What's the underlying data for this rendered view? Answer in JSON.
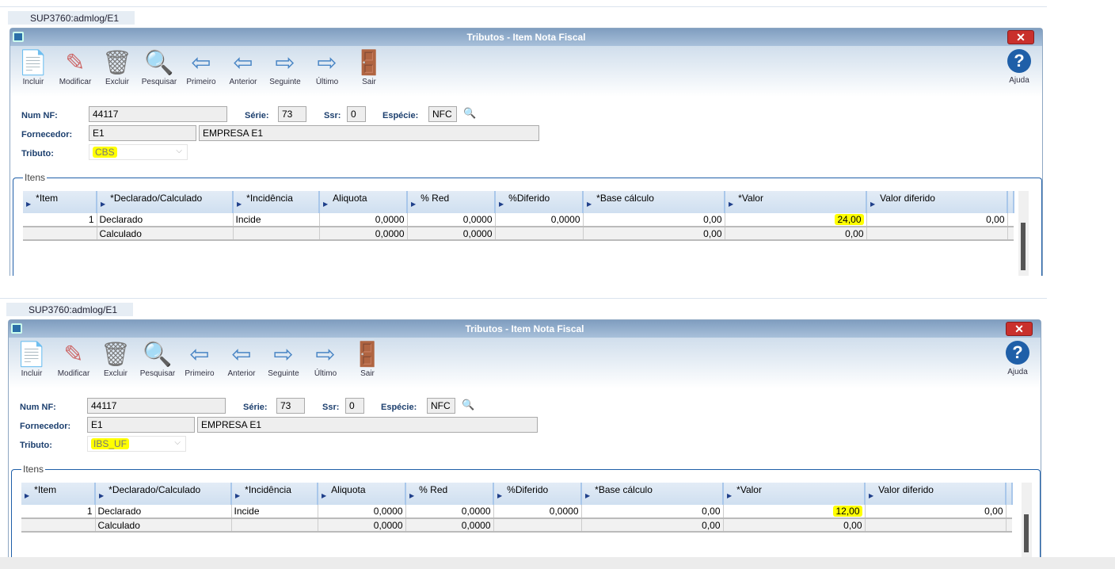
{
  "toolbar": [
    {
      "label": "Incluir",
      "icon": "add-document-icon"
    },
    {
      "label": "Modificar",
      "icon": "edit-document-icon"
    },
    {
      "label": "Excluir",
      "icon": "trash-icon"
    },
    {
      "label": "Pesquisar",
      "icon": "search-icon"
    },
    {
      "label": "Primeiro",
      "icon": "first-arrow-icon"
    },
    {
      "label": "Anterior",
      "icon": "previous-arrow-icon"
    },
    {
      "label": "Seguinte",
      "icon": "next-arrow-icon"
    },
    {
      "label": "Último",
      "icon": "last-arrow-icon"
    },
    {
      "label": "Sair",
      "icon": "exit-door-icon"
    }
  ],
  "help_label": "Ajuda",
  "labels": {
    "num_nf": "Num NF:",
    "serie": "Série:",
    "ssr": "Ssr:",
    "especie": "Espécie:",
    "fornecedor": "Fornecedor:",
    "tributo": "Tributo:",
    "itens": "Itens"
  },
  "columns": [
    "*Item",
    "*Declarado/Calculado",
    "*Incidência",
    "Aliquota",
    "% Red",
    "%Diferido",
    "*Base cálculo",
    "*Valor",
    "Valor diferido"
  ],
  "highlight_color": "#ffff00",
  "windows": [
    {
      "tab": "SUP3760:admlog/E1",
      "title": "Tributos - Item Nota Fiscal",
      "num_nf": "44117",
      "serie": "73",
      "ssr": "0",
      "especie": "NFC",
      "fornecedor_code": "E1",
      "fornecedor_name": "EMPRESA E1",
      "tributo": "CBS",
      "rows": [
        [
          "1",
          "Declarado",
          "Incide",
          "0,0000",
          "0,0000",
          "0,0000",
          "0,00",
          "24,00",
          "0,00"
        ],
        [
          "",
          "Calculado",
          "",
          "0,0000",
          "0,0000",
          "",
          "0,00",
          "0,00",
          ""
        ]
      ]
    },
    {
      "tab": "SUP3760:admlog/E1",
      "title": "Tributos - Item Nota Fiscal",
      "num_nf": "44117",
      "serie": "73",
      "ssr": "0",
      "especie": "NFC",
      "fornecedor_code": "E1",
      "fornecedor_name": "EMPRESA E1",
      "tributo": "IBS_UF",
      "rows": [
        [
          "1",
          "Declarado",
          "Incide",
          "0,0000",
          "0,0000",
          "0,0000",
          "0,00",
          "12,00",
          "0,00"
        ],
        [
          "",
          "Calculado",
          "",
          "0,0000",
          "0,0000",
          "",
          "0,00",
          "0,00",
          ""
        ]
      ]
    }
  ]
}
